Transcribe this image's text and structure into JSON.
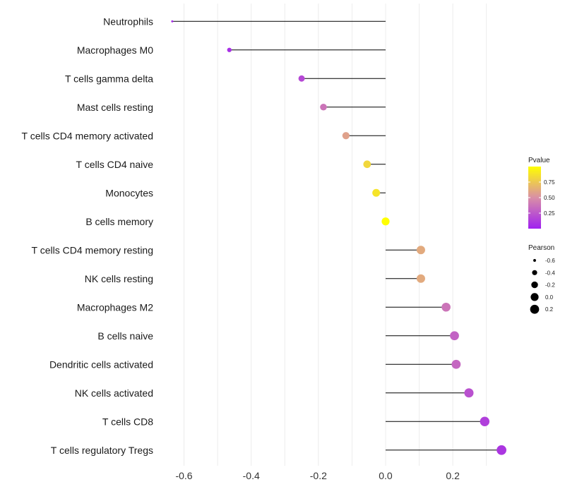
{
  "chart_data": {
    "type": "lollipop",
    "title": "",
    "xlabel": "",
    "ylabel": "",
    "xlim": [
      -0.66,
      0.37
    ],
    "x_ticks": [
      -0.6,
      -0.4,
      -0.2,
      0.0,
      0.2
    ],
    "x_tick_labels": [
      "-0.6",
      "-0.4",
      "-0.2",
      "0.0",
      "0.2"
    ],
    "categories": [
      "Neutrophils",
      "Macrophages M0",
      "T cells gamma delta",
      "Mast cells resting",
      "T cells CD4 memory activated",
      "T cells CD4 naive",
      "Monocytes",
      "B cells memory",
      "T cells CD4 memory resting",
      "NK cells resting",
      "Macrophages M2",
      "B cells naive",
      "Dendritic cells activated",
      "NK cells activated",
      "T cells CD8",
      "T cells regulatory  Tregs"
    ],
    "pearson": [
      -0.635,
      -0.465,
      -0.25,
      -0.185,
      -0.118,
      -0.055,
      -0.028,
      0.0,
      0.105,
      0.105,
      0.18,
      0.205,
      0.21,
      0.248,
      0.295,
      0.345
    ],
    "pvalue": [
      0.05,
      0.07,
      0.18,
      0.38,
      0.58,
      0.82,
      0.88,
      1.0,
      0.62,
      0.62,
      0.38,
      0.3,
      0.32,
      0.22,
      0.14,
      0.1
    ],
    "color_legend": {
      "title": "Pvalue",
      "ticks": [
        0.25,
        0.5,
        0.75
      ],
      "tick_labels": [
        "0.25",
        "0.50",
        "0.75"
      ],
      "range": [
        0.0,
        1.0
      ],
      "low_color": "#a020f0",
      "mid_color": "#d98fa6",
      "high_color": "#ffff00"
    },
    "size_legend": {
      "title": "Pearson",
      "values": [
        -0.6,
        -0.4,
        -0.2,
        0.0,
        0.2
      ],
      "labels": [
        "-0.6",
        "-0.4",
        "-0.2",
        "0.0",
        "0.2"
      ]
    },
    "grid": true,
    "legend_position": "right"
  }
}
